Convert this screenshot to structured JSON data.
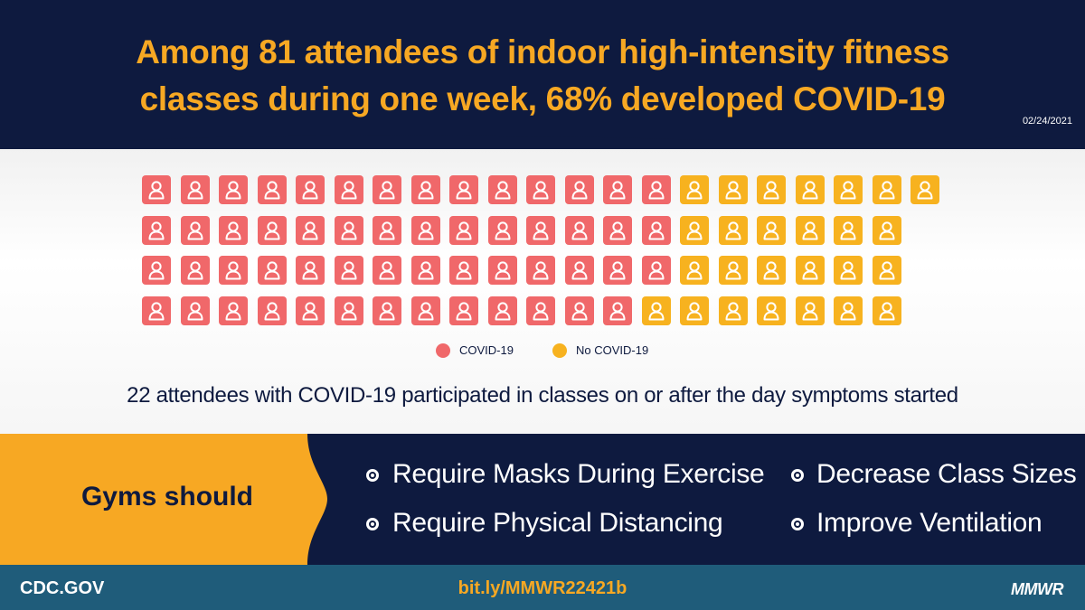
{
  "header": {
    "title_line1": "Among 81 attendees of indoor high-intensity fitness",
    "title_line2": "classes during one week, 68% developed COVID-19",
    "date": "02/24/2021"
  },
  "chart_data": {
    "type": "icon-array",
    "total": 81,
    "rows": [
      {
        "covid": 14,
        "no_covid": 7
      },
      {
        "covid": 14,
        "no_covid": 6
      },
      {
        "covid": 14,
        "no_covid": 6
      },
      {
        "covid": 13,
        "no_covid": 7
      }
    ],
    "legend": [
      {
        "name": "COVID-19",
        "color": "#f0686a"
      },
      {
        "name": "No COVID-19",
        "color": "#f7b21f"
      }
    ]
  },
  "subtext": "22 attendees with COVID-19 participated in classes on or after the day symptoms started",
  "recommendations": {
    "heading": "Gyms should",
    "items": [
      "Require Masks During Exercise",
      "Require Physical Distancing",
      "Decrease Class Sizes",
      "Improve Ventilation"
    ]
  },
  "footer": {
    "left": "CDC.GOV",
    "center": "bit.ly/MMWR22421b",
    "right": "MMWR"
  },
  "colors": {
    "navy": "#0e1a3f",
    "gold": "#f7a823",
    "teal": "#1f5c7a"
  }
}
